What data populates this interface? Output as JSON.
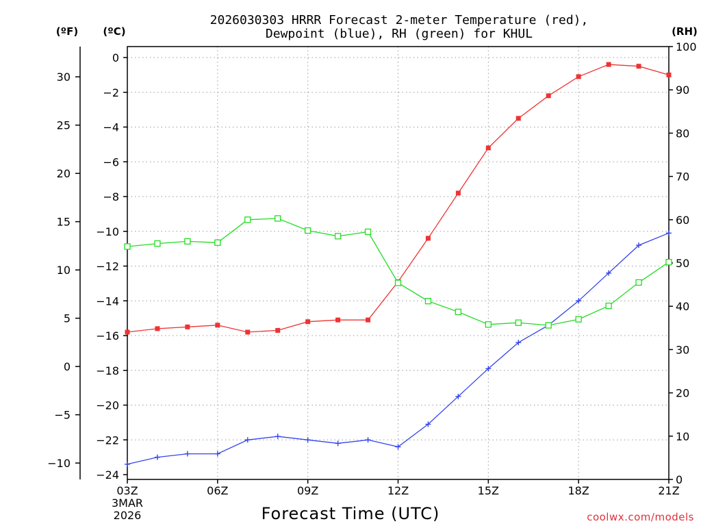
{
  "chart_data": {
    "type": "line",
    "title_line1": "2026030303 HRRR Forecast 2-meter Temperature (red),",
    "title_line2": "Dewpoint (blue), RH (green) for KHUL",
    "unit_f": "(ºF)",
    "unit_c": "(ºC)",
    "unit_rh": "(RH)",
    "xlabel": "Forecast Time (UTC)",
    "x_tick_labels": [
      "03Z",
      "06Z",
      "09Z",
      "12Z",
      "15Z",
      "18Z",
      "21Z"
    ],
    "x_tick_hours": [
      0,
      3,
      6,
      9,
      12,
      15,
      18
    ],
    "date_line1": "3MAR",
    "date_line2": "2026",
    "source": "coolwx.com/models",
    "x_hours": [
      0,
      1,
      2,
      3,
      4,
      5,
      6,
      7,
      8,
      9,
      10,
      11,
      12,
      13,
      14,
      15,
      16,
      17,
      18
    ],
    "c_axis": {
      "min": -24,
      "max": 0,
      "ticks": [
        0,
        -2,
        -4,
        -6,
        -8,
        -10,
        -12,
        -14,
        -16,
        -18,
        -20,
        -22,
        -24
      ]
    },
    "f_axis": {
      "ticks": [
        30,
        25,
        20,
        15,
        10,
        5,
        0,
        -5,
        -10
      ]
    },
    "rh_axis": {
      "min": 0,
      "max": 100,
      "ticks": [
        100,
        90,
        80,
        70,
        60,
        50,
        40,
        30,
        20,
        10,
        0
      ]
    },
    "series": [
      {
        "name": "Temperature (°C)",
        "color": "#ee3333",
        "marker": "filled-square",
        "axis": "c",
        "values": [
          -15.8,
          -15.6,
          -15.5,
          -15.4,
          -15.8,
          -15.7,
          -15.2,
          -15.1,
          -15.1,
          -12.9,
          -10.4,
          -7.8,
          -5.2,
          -3.5,
          -2.2,
          -1.1,
          -0.4,
          -0.5,
          -1.0
        ]
      },
      {
        "name": "Dewpoint (°C)",
        "color": "#3344ee",
        "marker": "plus",
        "axis": "c",
        "values": [
          -23.4,
          -23.0,
          -22.8,
          -22.8,
          -22.0,
          -21.8,
          -22.0,
          -22.2,
          -22.0,
          -22.4,
          -21.1,
          -19.5,
          -17.9,
          -16.4,
          -15.4,
          -14.0,
          -12.4,
          -10.8,
          -10.1
        ]
      },
      {
        "name": "RH (%)",
        "color": "#22dd22",
        "marker": "open-square",
        "axis": "rh",
        "values": [
          53.8,
          54.5,
          55.0,
          54.7,
          60.0,
          60.3,
          57.5,
          56.2,
          57.2,
          45.4,
          41.2,
          38.7,
          35.8,
          36.2,
          35.6,
          37.0,
          40.1,
          45.5,
          50.2
        ]
      }
    ]
  }
}
